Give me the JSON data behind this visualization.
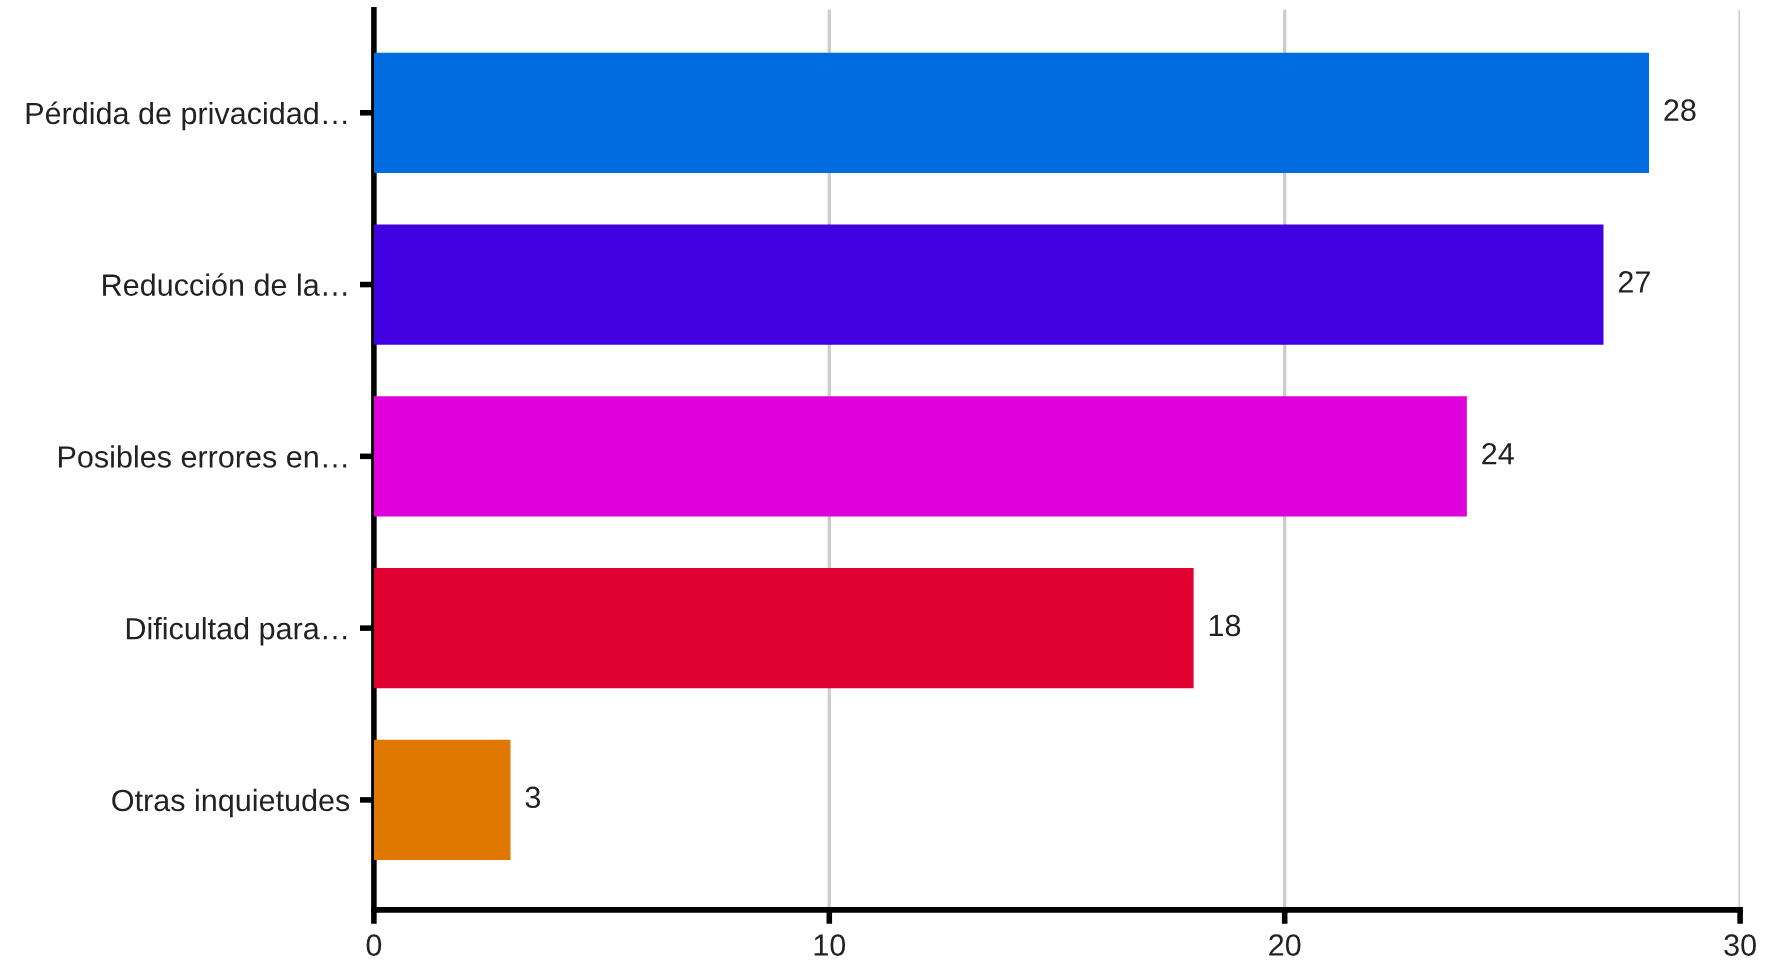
{
  "chart_data": {
    "type": "bar",
    "orientation": "horizontal",
    "categories": [
      "Pérdida de privacidad…",
      "Reducción de la…",
      "Posibles errores en…",
      "Dificultad para…",
      "Otras inquietudes"
    ],
    "values": [
      28,
      27,
      24,
      18,
      3
    ],
    "colors": [
      "#006ce0",
      "#4100e0",
      "#e000dc",
      "#e00030",
      "#e07800"
    ],
    "xlim": [
      0,
      30
    ],
    "xticks": [
      0,
      10,
      20,
      30
    ],
    "grid": "x",
    "data_labels": true
  }
}
